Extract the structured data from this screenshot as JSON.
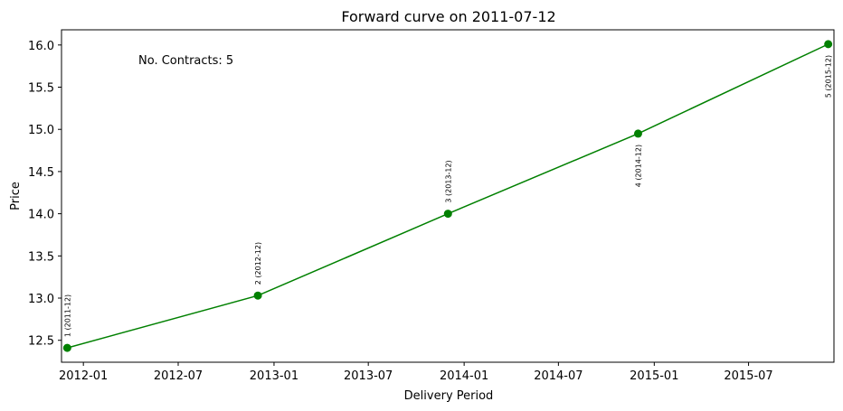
{
  "chart_data": {
    "type": "line",
    "title": "Forward curve on 2011-07-12",
    "xlabel": "Delivery Period",
    "ylabel": "Price",
    "annotation": "No. Contracts: 5",
    "series": [
      {
        "color": "#008000",
        "marker": "circle",
        "points": [
          {
            "x": "2011-12",
            "y": 12.41,
            "label": "1 (2011-12)"
          },
          {
            "x": "2012-12",
            "y": 13.03,
            "label": "2 (2012-12)"
          },
          {
            "x": "2013-12",
            "y": 14.0,
            "label": "3 (2013-12)"
          },
          {
            "x": "2014-12",
            "y": 14.95,
            "label": "4 (2014-12)"
          },
          {
            "x": "2015-12",
            "y": 16.01,
            "label": "5 (2015-12)"
          }
        ]
      }
    ],
    "xlim": [
      "2011-11-20",
      "2015-12-12"
    ],
    "ylim": [
      12.24,
      16.18
    ],
    "xticks": [
      {
        "value": "2012-01",
        "label": "2012-01"
      },
      {
        "value": "2012-07",
        "label": "2012-07"
      },
      {
        "value": "2013-01",
        "label": "2013-01"
      },
      {
        "value": "2013-07",
        "label": "2013-07"
      },
      {
        "value": "2014-01",
        "label": "2014-01"
      },
      {
        "value": "2014-07",
        "label": "2014-07"
      },
      {
        "value": "2015-01",
        "label": "2015-01"
      },
      {
        "value": "2015-07",
        "label": "2015-07"
      }
    ],
    "yticks": [
      12.5,
      13.0,
      13.5,
      14.0,
      14.5,
      15.0,
      15.5,
      16.0
    ],
    "grid": false,
    "legend": "none"
  }
}
